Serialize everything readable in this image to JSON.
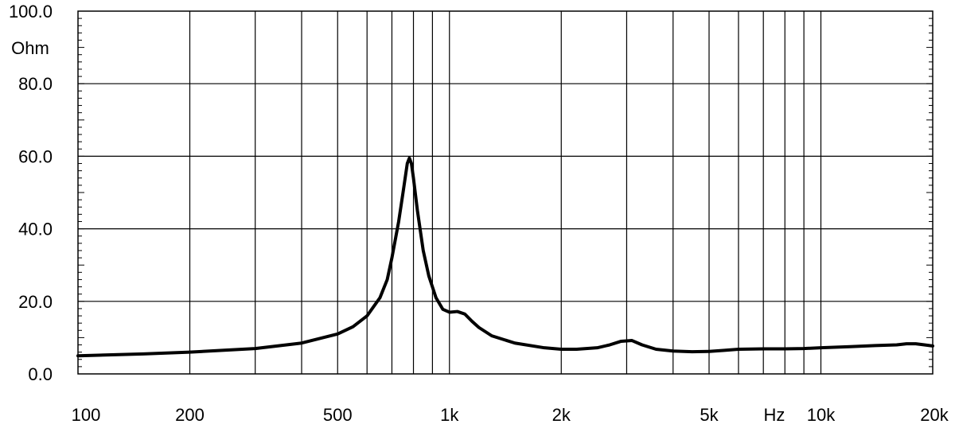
{
  "chart_data": {
    "type": "line",
    "title": "",
    "xlabel": "Hz",
    "ylabel": "Ohm",
    "x_scale": "log",
    "xlim": [
      100,
      20000
    ],
    "ylim": [
      0,
      100
    ],
    "grid": true,
    "y_ticks": [
      "0.0",
      "20.0",
      "40.0",
      "60.0",
      "80.0",
      "100.0"
    ],
    "x_ticks": [
      {
        "value": 100,
        "label": "100"
      },
      {
        "value": 200,
        "label": "200"
      },
      {
        "value": 500,
        "label": "500"
      },
      {
        "value": 1000,
        "label": "1k"
      },
      {
        "value": 2000,
        "label": "2k"
      },
      {
        "value": 5000,
        "label": "5k"
      },
      {
        "value": 10000,
        "label": "10k"
      },
      {
        "value": 20000,
        "label": "20k"
      }
    ],
    "series": [
      {
        "color": "#000000",
        "x": [
          100,
          150,
          200,
          300,
          400,
          500,
          550,
          600,
          650,
          680,
          700,
          730,
          750,
          770,
          780,
          790,
          800,
          820,
          850,
          880,
          920,
          960,
          1000,
          1050,
          1100,
          1150,
          1200,
          1300,
          1500,
          1800,
          2000,
          2200,
          2500,
          2700,
          2900,
          3100,
          3300,
          3600,
          4000,
          4500,
          5000,
          5500,
          6000,
          7000,
          8000,
          9000,
          10000,
          12000,
          14000,
          16000,
          17000,
          18000,
          19000,
          20000
        ],
        "y": [
          5,
          5.5,
          6,
          7,
          8.5,
          11,
          13,
          16,
          21,
          26,
          32,
          42,
          50,
          58,
          59.5,
          58,
          54,
          45,
          34,
          27,
          21,
          17.8,
          17,
          17.2,
          16.5,
          14.5,
          12.8,
          10.5,
          8.5,
          7.2,
          6.8,
          6.8,
          7.2,
          8,
          9,
          9.2,
          8,
          6.8,
          6.3,
          6.1,
          6.2,
          6.5,
          6.8,
          6.9,
          6.9,
          7.0,
          7.2,
          7.5,
          7.8,
          8.0,
          8.3,
          8.3,
          8.0,
          7.7
        ]
      }
    ]
  }
}
